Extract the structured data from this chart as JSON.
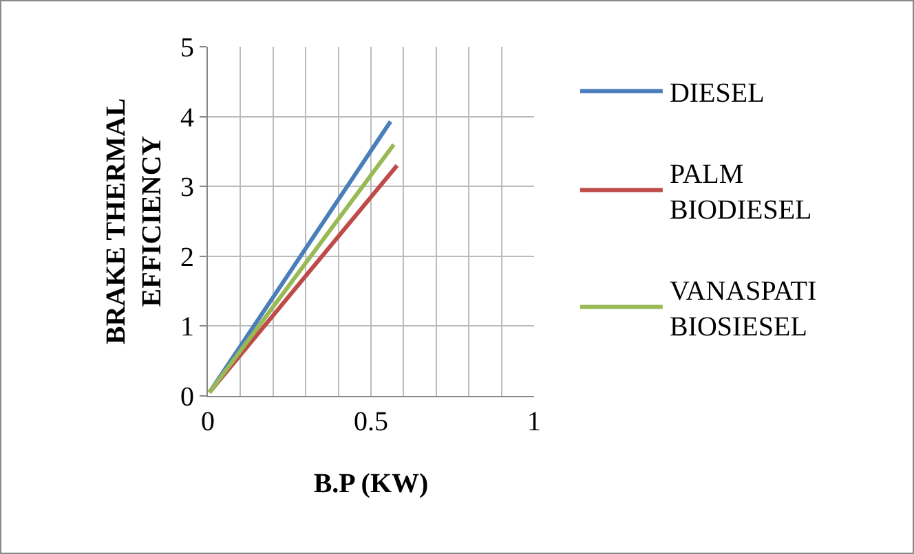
{
  "chart_data": {
    "type": "line",
    "xlabel": "B.P (KW)",
    "ylabel": "BRAKE THERMAL EFFICIENCY",
    "series": [
      {
        "name": "DIESEL",
        "color": "#4a7ebb",
        "x": [
          0.005,
          0.56
        ],
        "values": [
          0.05,
          3.93
        ]
      },
      {
        "name": "PALM BIODIESEL",
        "color": "#be4b48",
        "x": [
          0.005,
          0.58
        ],
        "values": [
          0.05,
          3.3
        ]
      },
      {
        "name": "VANASPATI BIOSIESEL",
        "color": "#98b954",
        "x": [
          0.005,
          0.57
        ],
        "values": [
          0.05,
          3.6
        ]
      }
    ],
    "xlim": [
      0,
      1
    ],
    "ylim": [
      0,
      5
    ],
    "xticks": [
      0,
      {
        "value": 0.1,
        "label": null
      },
      {
        "value": 0.2,
        "label": null
      },
      {
        "value": 0.3,
        "label": null
      },
      {
        "value": 0.4,
        "label": null
      },
      0.5,
      {
        "value": 0.6,
        "label": null
      },
      {
        "value": 0.7,
        "label": null
      },
      {
        "value": 0.8,
        "label": null
      },
      {
        "value": 0.9,
        "label": null
      },
      1
    ],
    "yticks": [
      0,
      1,
      2,
      3,
      4,
      5
    ],
    "grid": true,
    "legend": "right",
    "marker": "none",
    "line_style": "solid"
  }
}
